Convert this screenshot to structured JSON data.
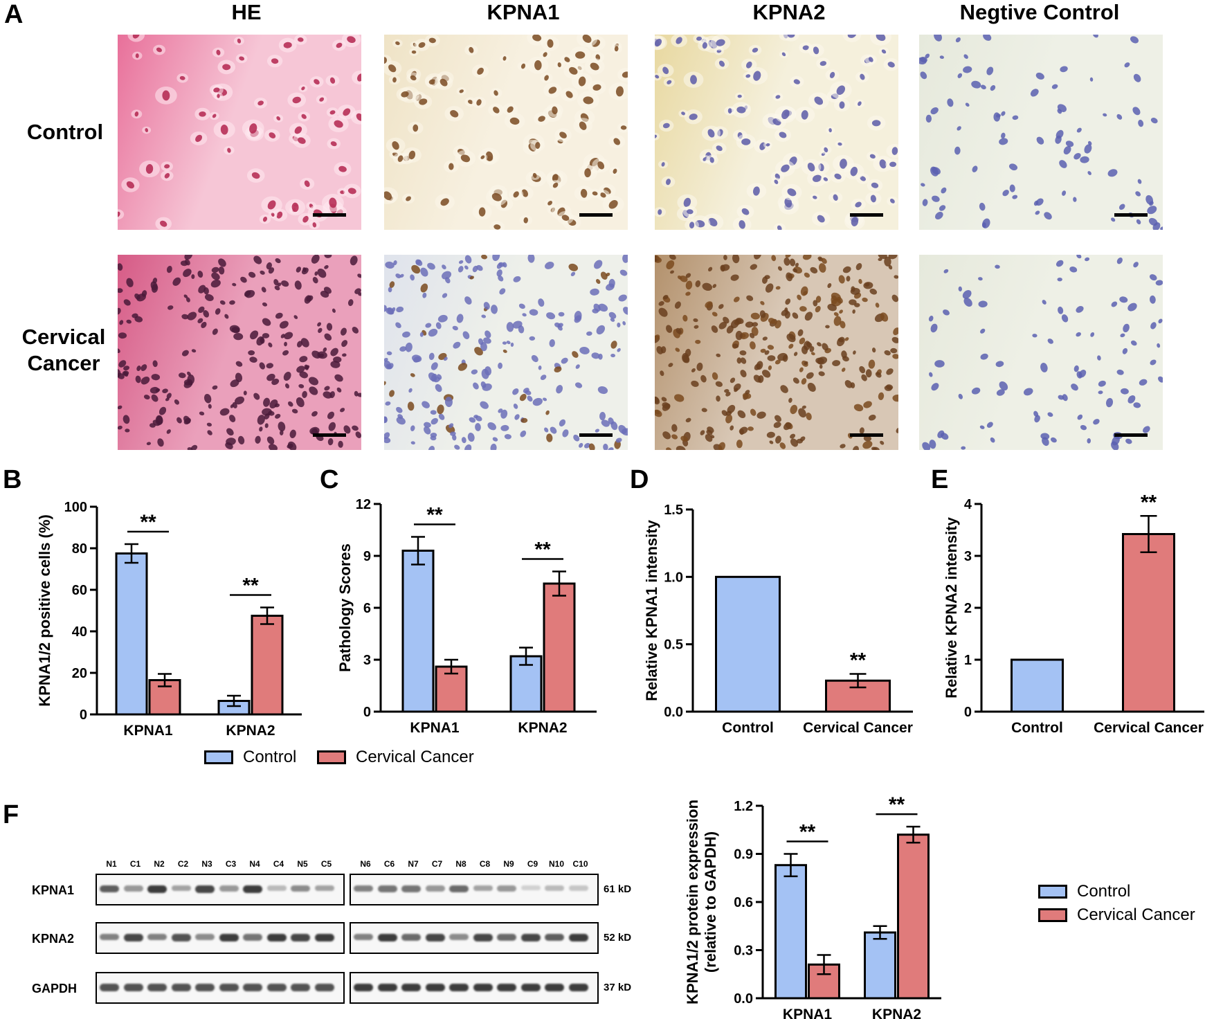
{
  "panel_labels": [
    "A",
    "B",
    "C",
    "D",
    "E",
    "F"
  ],
  "columns": [
    "HE",
    "KPNA1",
    "KPNA2",
    "Negtive Control"
  ],
  "rows": [
    {
      "label_line1": "Control",
      "label_line2": ""
    },
    {
      "label_line1": "Cervical",
      "label_line2": "Cancer"
    }
  ],
  "micrographs": [
    {
      "name": "he-control",
      "stain": "he",
      "density": 0.35
    },
    {
      "name": "kpna1-control",
      "stain": "ihc-brown-light",
      "density": 0.35
    },
    {
      "name": "kpna2-control",
      "stain": "ihc-yellow",
      "density": 0.4
    },
    {
      "name": "negative-control-control",
      "stain": "negative",
      "density": 0.25
    },
    {
      "name": "he-cancer",
      "stain": "he-dense",
      "density": 0.9
    },
    {
      "name": "kpna1-cancer",
      "stain": "ihc-blue",
      "density": 0.8
    },
    {
      "name": "kpna2-cancer",
      "stain": "ihc-brown-dense",
      "density": 0.9
    },
    {
      "name": "negative-control-cancer",
      "stain": "negative",
      "density": 0.6
    }
  ],
  "colors": {
    "control": "#a4c2f4",
    "cancer": "#e07b7b",
    "he": "#e45a86",
    "hematoxylin": "#4a4aa0",
    "dab": "#8b5a2b"
  },
  "legend_bc": {
    "control": "Control",
    "cancer": "Cervical Cancer"
  },
  "legend_f": {
    "control": "Control",
    "cancer": "Cervical Cancer"
  },
  "significance": "**",
  "chart_data": [
    {
      "panel": "B",
      "type": "bar",
      "categories": [
        "KPNA1",
        "KPNA2"
      ],
      "ylabel": "KPNA1/2 positive cells (%)",
      "ylim": [
        0,
        100
      ],
      "yticks": [
        0,
        20,
        40,
        60,
        80,
        100
      ],
      "series": [
        {
          "name": "Control",
          "values": [
            77.5,
            6.5
          ],
          "errors": [
            4.5,
            2.5
          ]
        },
        {
          "name": "Cervical Cancer",
          "values": [
            16.5,
            47.5
          ],
          "errors": [
            3.0,
            4.0
          ]
        }
      ],
      "significance": [
        "**",
        "**"
      ]
    },
    {
      "panel": "C",
      "type": "bar",
      "categories": [
        "KPNA1",
        "KPNA2"
      ],
      "ylabel": "Pathology Scores",
      "ylim": [
        0,
        12
      ],
      "yticks": [
        0,
        3,
        6,
        9,
        12
      ],
      "series": [
        {
          "name": "Control",
          "values": [
            9.3,
            3.2
          ],
          "errors": [
            0.8,
            0.5
          ]
        },
        {
          "name": "Cervical Cancer",
          "values": [
            2.6,
            7.4
          ],
          "errors": [
            0.4,
            0.7
          ]
        }
      ],
      "significance": [
        "**",
        "**"
      ]
    },
    {
      "panel": "D",
      "type": "bar",
      "categories": [
        "Control",
        "Cervical Cancer"
      ],
      "ylabel": "Relative KPNA1 intensity",
      "ylim": [
        0,
        1.5
      ],
      "yticks": [
        "0.0",
        "0.5",
        "1.0",
        "1.5"
      ],
      "values": [
        1.0,
        0.23
      ],
      "errors": [
        0,
        0.05
      ],
      "significance": [
        "",
        "**"
      ]
    },
    {
      "panel": "E",
      "type": "bar",
      "categories": [
        "Control",
        "Cervical Cancer"
      ],
      "ylabel": "Relative KPNA2 intensity",
      "ylim": [
        0,
        4
      ],
      "yticks": [
        0,
        1,
        2,
        3,
        4
      ],
      "values": [
        1.0,
        3.42
      ],
      "errors": [
        0,
        0.35
      ],
      "significance": [
        "",
        "**"
      ]
    },
    {
      "panel": "F",
      "type": "bar",
      "categories": [
        "KPNA1",
        "KPNA2"
      ],
      "ylabel": "KPNA1/2 protein expression",
      "ylabel2": "(relative to GAPDH)",
      "ylim": [
        0,
        1.2
      ],
      "yticks": [
        "0.0",
        "0.3",
        "0.6",
        "0.9",
        "1.2"
      ],
      "series": [
        {
          "name": "Control",
          "values": [
            0.83,
            0.41
          ],
          "errors": [
            0.07,
            0.04
          ]
        },
        {
          "name": "Cervical Cancer",
          "values": [
            0.21,
            1.02
          ],
          "errors": [
            0.06,
            0.05
          ]
        }
      ],
      "significance": [
        "**",
        "**"
      ]
    }
  ],
  "western_blot": {
    "lanes_left": [
      "N1",
      "C1",
      "N2",
      "C2",
      "N3",
      "C3",
      "N4",
      "C4",
      "N5",
      "C5"
    ],
    "lanes_right": [
      "N6",
      "C6",
      "N7",
      "C7",
      "N8",
      "C8",
      "N9",
      "C9",
      "N10",
      "C10"
    ],
    "rows": [
      {
        "label": "KPNA1",
        "size": "61 kD",
        "intensity_left": [
          0.7,
          0.45,
          0.85,
          0.4,
          0.8,
          0.45,
          0.85,
          0.3,
          0.5,
          0.4
        ],
        "intensity_right": [
          0.55,
          0.6,
          0.6,
          0.45,
          0.65,
          0.4,
          0.45,
          0.2,
          0.3,
          0.25
        ]
      },
      {
        "label": "KPNA2",
        "size": "52 kD",
        "intensity_left": [
          0.55,
          0.8,
          0.55,
          0.75,
          0.5,
          0.85,
          0.6,
          0.85,
          0.8,
          0.85
        ],
        "intensity_right": [
          0.55,
          0.85,
          0.65,
          0.8,
          0.5,
          0.8,
          0.65,
          0.8,
          0.7,
          0.85
        ]
      },
      {
        "label": "GAPDH",
        "size": "37 kD",
        "intensity_left": [
          0.75,
          0.75,
          0.75,
          0.75,
          0.75,
          0.75,
          0.75,
          0.75,
          0.75,
          0.75
        ],
        "intensity_right": [
          0.85,
          0.85,
          0.85,
          0.85,
          0.85,
          0.85,
          0.85,
          0.85,
          0.85,
          0.85
        ]
      }
    ]
  }
}
